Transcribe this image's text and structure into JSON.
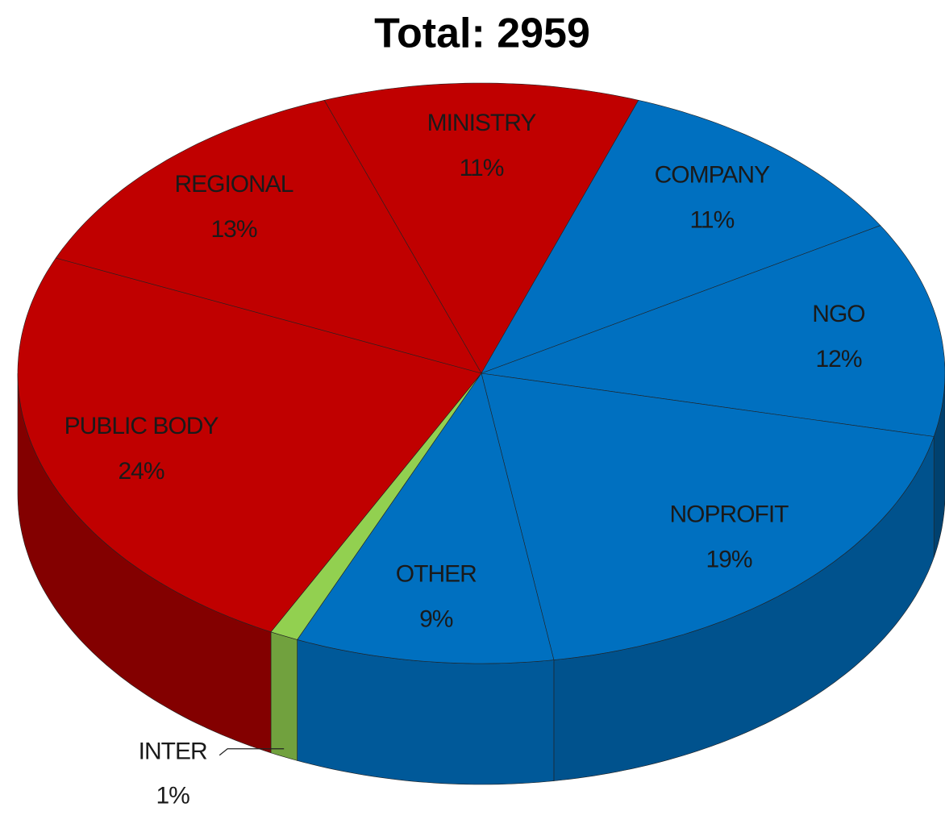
{
  "chart_data": {
    "type": "pie",
    "title": "Total: 2959",
    "categories": [
      "MINISTRY",
      "COMPANY",
      "NGO",
      "NOPROFIT",
      "OTHER",
      "INTER",
      "PUBLIC BODY",
      "REGIONAL"
    ],
    "values": [
      11,
      11,
      12,
      19,
      9,
      1,
      24,
      13
    ],
    "value_labels": [
      "11%",
      "11%",
      "12%",
      "19%",
      "9%",
      "1%",
      "24%",
      "13%"
    ],
    "colors": [
      "#c00000",
      "#0070c0",
      "#0070c0",
      "#0070c0",
      "#0070c0",
      "#92d050",
      "#c00000",
      "#c00000"
    ]
  }
}
